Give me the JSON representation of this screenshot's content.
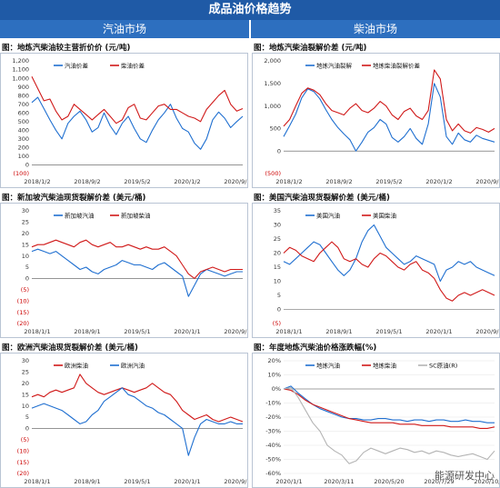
{
  "header": {
    "title": "成品油价格趋势",
    "left_section": "汽油市场",
    "right_section": "柴油市场"
  },
  "credit": "能源研发中心",
  "colors": {
    "blue": "#1f6fd0",
    "red": "#d01919",
    "gray": "#b4b4b4"
  },
  "chart_data": [
    {
      "id": "p1",
      "type": "line",
      "title": "图：地炼汽柴油较主营折价价 (元/吨)",
      "yticks": [
        "1,200",
        "1,100",
        "1,000",
        "900",
        "800",
        "700",
        "600",
        "500",
        "400",
        "300",
        "200",
        "100",
        "0",
        "(100)"
      ],
      "xticks": [
        "2018/1/2",
        "2018/9/2",
        "2019/5/2",
        "2020/1/2",
        "2020/9/2"
      ],
      "ylim": [
        -100,
        1200
      ],
      "series": [
        {
          "name": "汽油价差",
          "color": "blue",
          "values": [
            720,
            780,
            650,
            520,
            400,
            300,
            480,
            560,
            620,
            520,
            380,
            430,
            600,
            450,
            350,
            480,
            560,
            420,
            300,
            260,
            400,
            520,
            600,
            700,
            540,
            420,
            380,
            250,
            180,
            300,
            520,
            610,
            540,
            430,
            500,
            560
          ]
        },
        {
          "name": "柴油价差",
          "color": "red",
          "values": [
            1020,
            880,
            740,
            760,
            620,
            520,
            560,
            700,
            640,
            580,
            520,
            580,
            640,
            560,
            480,
            520,
            660,
            700,
            540,
            520,
            600,
            680,
            700,
            640,
            640,
            600,
            560,
            540,
            500,
            640,
            720,
            800,
            860,
            700,
            620,
            650
          ]
        }
      ]
    },
    {
      "id": "p2",
      "type": "line",
      "title": "图：地炼汽柴油裂解价差 (元/吨)",
      "yticks": [
        "2,000",
        "1,500",
        "1,000",
        "500",
        "0",
        "(500)"
      ],
      "xticks": [
        "2018/1/2",
        "2018/9/2",
        "2019/5/2",
        "2020/1/2",
        "2020/9/2"
      ],
      "ylim": [
        -500,
        2000
      ],
      "series": [
        {
          "name": "地炼汽油裂解",
          "color": "blue",
          "values": [
            320,
            560,
            820,
            1180,
            1380,
            1320,
            1160,
            920,
            700,
            520,
            380,
            250,
            0,
            200,
            420,
            520,
            700,
            600,
            300,
            200,
            320,
            500,
            280,
            150,
            600,
            1500,
            1200,
            320,
            150,
            400,
            250,
            200,
            350,
            280,
            240,
            200
          ]
        },
        {
          "name": "地炼柴油裂解价差",
          "color": "red",
          "values": [
            550,
            700,
            1000,
            1280,
            1400,
            1350,
            1250,
            1050,
            900,
            850,
            800,
            950,
            1050,
            900,
            850,
            950,
            1100,
            1000,
            800,
            700,
            880,
            950,
            780,
            700,
            900,
            1800,
            1600,
            700,
            450,
            600,
            450,
            400,
            520,
            480,
            420,
            500
          ]
        }
      ]
    },
    {
      "id": "p3",
      "type": "line",
      "title": "图：新加坡汽柴油现货裂解价差 (美元/桶)",
      "yticks": [
        "30",
        "25",
        "20",
        "15",
        "10",
        "5",
        "0",
        "(5)",
        "(10)",
        "(15)",
        "(20)"
      ],
      "xticks": [
        "2018/1/1",
        "2018/9/1",
        "2019/5/1",
        "2020/1/1",
        "2020/9/1"
      ],
      "ylim": [
        -20,
        30
      ],
      "series": [
        {
          "name": "新加坡汽油",
          "color": "blue",
          "values": [
            12,
            13,
            12,
            11,
            12,
            10,
            8,
            6,
            4,
            5,
            3,
            2,
            4,
            5,
            6,
            8,
            7,
            6,
            6,
            5,
            4,
            6,
            7,
            5,
            3,
            1,
            -8,
            -3,
            2,
            4,
            3,
            2,
            1,
            2,
            3,
            3
          ]
        },
        {
          "name": "新加坡柴油",
          "color": "red",
          "values": [
            14,
            15,
            15,
            16,
            17,
            16,
            15,
            14,
            16,
            17,
            15,
            14,
            15,
            16,
            14,
            14,
            15,
            14,
            13,
            14,
            13,
            13,
            14,
            12,
            10,
            6,
            2,
            0,
            3,
            4,
            5,
            4,
            3,
            4,
            4,
            4
          ]
        }
      ]
    },
    {
      "id": "p4",
      "type": "line",
      "title": "图：美国汽柴油现货裂解价差 (美元/桶)",
      "yticks": [
        "35",
        "30",
        "25",
        "20",
        "15",
        "10",
        "5",
        "0",
        "(5)"
      ],
      "xticks": [
        "2018/1/1",
        "2018/9/1",
        "2019/5/1",
        "2020/1/1",
        "2020/9/1"
      ],
      "ylim": [
        -5,
        35
      ],
      "series": [
        {
          "name": "美国汽油",
          "color": "blue",
          "values": [
            17,
            16,
            18,
            20,
            22,
            24,
            23,
            20,
            17,
            14,
            12,
            14,
            18,
            24,
            28,
            30,
            26,
            22,
            20,
            18,
            16,
            17,
            19,
            18,
            17,
            16,
            10,
            14,
            15,
            17,
            16,
            17,
            15,
            14,
            13,
            12
          ]
        },
        {
          "name": "美国柴油",
          "color": "red",
          "values": [
            20,
            22,
            21,
            19,
            18,
            17,
            20,
            22,
            24,
            22,
            18,
            17,
            18,
            16,
            15,
            18,
            20,
            19,
            17,
            15,
            14,
            16,
            17,
            14,
            13,
            11,
            7,
            4,
            3,
            5,
            6,
            5,
            6,
            7,
            6,
            5
          ]
        }
      ]
    },
    {
      "id": "p5",
      "type": "line",
      "title": "图：欧洲汽柴油现货裂解价差 (美元/桶)",
      "yticks": [
        "30",
        "25",
        "20",
        "15",
        "10",
        "5",
        "0",
        "(5)",
        "(10)",
        "(15)",
        "(20)"
      ],
      "xticks": [
        "2018/1/1",
        "2018/9/1",
        "2019/5/1",
        "2020/1/1",
        "2020/9/1"
      ],
      "ylim": [
        -20,
        30
      ],
      "series": [
        {
          "name": "欧洲柴油",
          "color": "red",
          "values": [
            14,
            15,
            14,
            16,
            17,
            16,
            17,
            18,
            24,
            20,
            18,
            16,
            15,
            16,
            17,
            18,
            17,
            16,
            17,
            18,
            20,
            18,
            16,
            15,
            12,
            8,
            6,
            4,
            5,
            6,
            4,
            3,
            4,
            5,
            4,
            3
          ]
        },
        {
          "name": "欧洲汽油",
          "color": "blue",
          "values": [
            9,
            10,
            11,
            10,
            9,
            8,
            6,
            4,
            2,
            3,
            6,
            8,
            12,
            14,
            16,
            18,
            15,
            14,
            12,
            10,
            9,
            7,
            6,
            4,
            2,
            0,
            -12,
            -4,
            2,
            4,
            3,
            2,
            2,
            3,
            2,
            2
          ]
        }
      ]
    },
    {
      "id": "p6",
      "type": "line",
      "title": "图：年度地炼汽柴油价格涨跌幅(%)",
      "yticks": [
        "20%",
        "10%",
        "0%",
        "-10%",
        "-20%",
        "-30%",
        "-40%",
        "-50%",
        "-60%"
      ],
      "xticks": [
        "2020/1/1",
        "2020/3/11",
        "2020/5/20",
        "2020/7/29",
        "2020/10/7"
      ],
      "ylim": [
        -60,
        20
      ],
      "series": [
        {
          "name": "地炼汽油",
          "color": "blue",
          "values": [
            0,
            2,
            -3,
            -7,
            -11,
            -14,
            -16,
            -18,
            -20,
            -21,
            -21,
            -22,
            -22,
            -21,
            -21,
            -22,
            -22,
            -23,
            -22,
            -22,
            -23,
            -22,
            -22,
            -23,
            -23,
            -22,
            -23,
            -23,
            -24,
            -24
          ]
        },
        {
          "name": "地炼柴油",
          "color": "red",
          "values": [
            0,
            -1,
            -4,
            -8,
            -11,
            -13,
            -15,
            -17,
            -19,
            -21,
            -22,
            -23,
            -24,
            -24,
            -24,
            -24,
            -25,
            -25,
            -25,
            -26,
            -26,
            -26,
            -26,
            -27,
            -27,
            -27,
            -27,
            -28,
            -28,
            -27
          ]
        },
        {
          "name": "SC原油(R)",
          "color": "gray",
          "values": [
            0,
            1,
            -6,
            -15,
            -24,
            -30,
            -40,
            -44,
            -47,
            -53,
            -51,
            -45,
            -42,
            -44,
            -46,
            -44,
            -42,
            -43,
            -45,
            -44,
            -46,
            -44,
            -45,
            -47,
            -48,
            -47,
            -46,
            -48,
            -50,
            -44
          ]
        }
      ]
    }
  ]
}
